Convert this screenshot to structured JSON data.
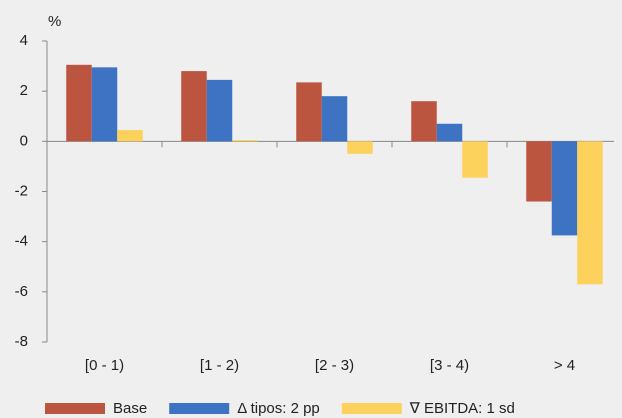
{
  "chart_data": {
    "type": "bar",
    "y_label": "%",
    "categories": [
      "[0 - 1)",
      "[1 - 2)",
      "[2 - 3)",
      "[3 - 4)",
      "> 4"
    ],
    "series": [
      {
        "name": "Base",
        "color": "#bb553f",
        "values": [
          3.05,
          2.8,
          2.35,
          1.6,
          -2.4
        ]
      },
      {
        "name": "Δ tipos: 2 pp",
        "color": "#3d73c2",
        "values": [
          2.95,
          2.45,
          1.8,
          0.7,
          -3.75
        ]
      },
      {
        "name": "∇ EBITDA: 1 sd",
        "color": "#fdd25c",
        "values": [
          0.45,
          0.05,
          -0.5,
          -1.45,
          -5.7
        ]
      }
    ],
    "ylim": [
      -8,
      4
    ],
    "yticks": [
      -8,
      -6,
      -4,
      -2,
      0,
      2,
      4
    ],
    "grid": false
  }
}
